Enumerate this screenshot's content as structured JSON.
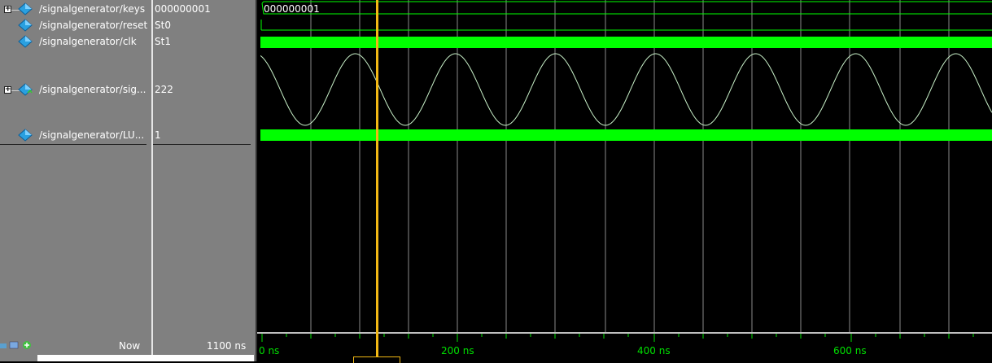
{
  "signals": [
    {
      "path": "/signalgenerator/keys",
      "value": "000000001",
      "expandable": true
    },
    {
      "path": "/signalgenerator/reset",
      "value": "St0",
      "expandable": false
    },
    {
      "path": "/signalgenerator/clk",
      "value": "St1",
      "expandable": false
    },
    {
      "path": "/signalgenerator/sig...",
      "value": "222",
      "expandable": true
    },
    {
      "path": "/signalgenerator/LU...",
      "value": "1",
      "expandable": false
    }
  ],
  "wave": {
    "keys_bus_value": "000000001",
    "wave_color": "#00ff00",
    "cursor_color": "#f2b814"
  },
  "footer": {
    "now_label": "Now",
    "now_value": "1100 ns"
  },
  "timeline": {
    "labels": [
      "0 ns",
      "200 ns",
      "400 ns",
      "600 ns"
    ]
  },
  "icons": {
    "signal": "signal-diamond-icon",
    "expand": "expand-plus-icon"
  }
}
